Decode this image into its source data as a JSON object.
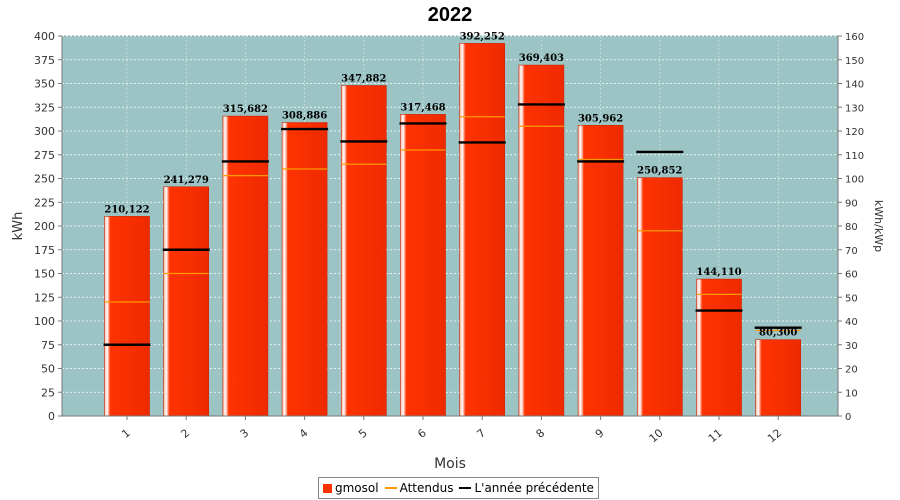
{
  "chart_data": {
    "type": "bar",
    "title": "2022",
    "xlabel": "Mois",
    "ylabel": "kWh",
    "y2label": "kWh/kWp",
    "categories": [
      "1",
      "2",
      "3",
      "4",
      "5",
      "6",
      "7",
      "8",
      "9",
      "10",
      "11",
      "12"
    ],
    "ylim": [
      0,
      400
    ],
    "y2lim": [
      0,
      160
    ],
    "yticks": [
      0,
      25,
      50,
      75,
      100,
      125,
      150,
      175,
      200,
      225,
      250,
      275,
      300,
      325,
      350,
      375,
      400
    ],
    "y2ticks": [
      0,
      10,
      20,
      30,
      40,
      50,
      60,
      70,
      80,
      90,
      100,
      110,
      120,
      130,
      140,
      150,
      160
    ],
    "grid": true,
    "legend_position": "bottom",
    "series": [
      {
        "name": "gmosol",
        "kind": "bar",
        "color": "#ff3300",
        "values": [
          210.122,
          241.279,
          315.682,
          308.886,
          347.882,
          317.468,
          392.252,
          369.403,
          305.962,
          250.852,
          144.11,
          80.3
        ],
        "labels": [
          "210,122",
          "241,279",
          "315,682",
          "308,886",
          "347,882",
          "317,468",
          "392,252",
          "369,403",
          "305,962",
          "250,852",
          "144,110",
          "80,300"
        ]
      },
      {
        "name": "Attendus",
        "kind": "marker",
        "color": "#ff9900",
        "values": [
          120,
          150,
          253,
          260,
          265,
          280,
          315,
          305,
          270,
          195,
          128,
          90
        ]
      },
      {
        "name": "L'année précédente",
        "kind": "marker",
        "color": "#000000",
        "values": [
          75,
          175,
          268,
          302,
          289,
          308,
          288,
          328,
          268,
          278,
          111,
          93
        ]
      }
    ],
    "colors": {
      "plot_background": "#9cc4c4",
      "gridline": "#ffffff"
    }
  }
}
